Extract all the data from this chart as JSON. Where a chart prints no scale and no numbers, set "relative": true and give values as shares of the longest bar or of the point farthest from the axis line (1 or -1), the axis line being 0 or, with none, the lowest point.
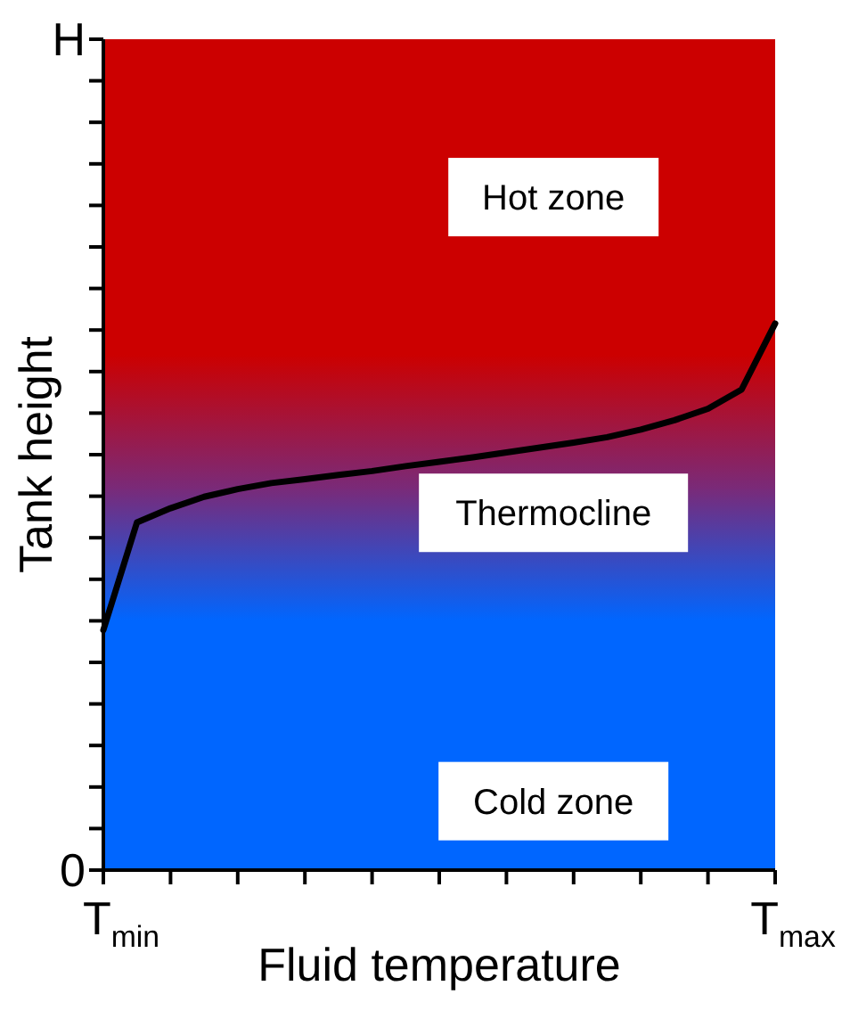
{
  "chart_data": {
    "type": "line",
    "xlabel": "Fluid temperature",
    "ylabel": "Tank height",
    "relative": true,
    "categories": [
      null,
      null,
      null,
      null,
      null,
      null,
      null,
      null,
      null,
      null,
      null,
      null,
      null,
      null,
      null,
      null,
      null,
      null,
      null,
      null,
      null
    ],
    "annotations": [
      "0",
      "H",
      "T$_{min}$",
      "T$_{max}$",
      "Cold zone",
      "Thermocline",
      "Hot zone"
    ],
    "series": [
      {
        "color": "#000000",
        "values": [
          0.439,
          0.636,
          0.662,
          0.683,
          0.697,
          0.708,
          0.715,
          0.723,
          0.73,
          0.739,
          0.747,
          0.755,
          0.764,
          0.773,
          0.782,
          0.792,
          0.806,
          0.823,
          0.844,
          0.879,
          1
        ]
      }
    ],
    "marker": "none",
    "line_style": "solid"
  }
}
